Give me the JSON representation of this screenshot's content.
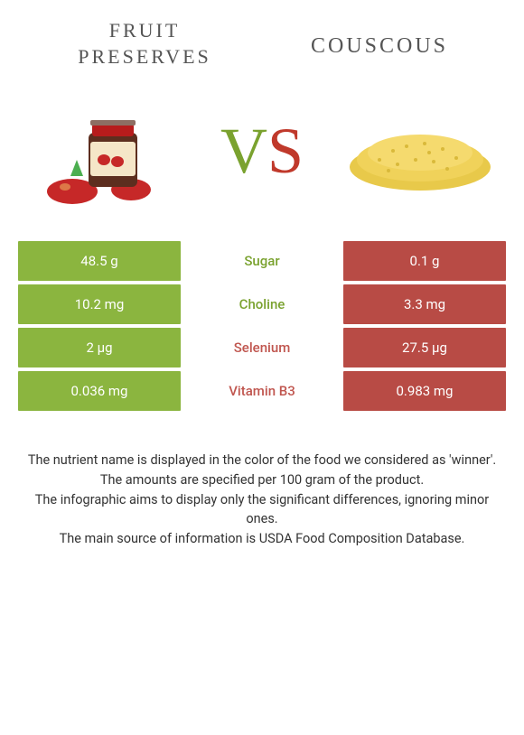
{
  "header": {
    "left_title": "FRUIT PRESERVES",
    "right_title": "COUSCOUS"
  },
  "vs_label": {
    "v": "V",
    "s": "S"
  },
  "colors": {
    "green": "#8bb53f",
    "red": "#b84b45",
    "text_green": "#7aa22f",
    "text_red": "#c0564f"
  },
  "rows": [
    {
      "left": "48.5 g",
      "mid": "Sugar",
      "right": "0.1 g",
      "winner": "left"
    },
    {
      "left": "10.2 mg",
      "mid": "Choline",
      "right": "3.3 mg",
      "winner": "left"
    },
    {
      "left": "2 µg",
      "mid": "Selenium",
      "right": "27.5 µg",
      "winner": "right"
    },
    {
      "left": "0.036 mg",
      "mid": "Vitamin B3",
      "right": "0.983 mg",
      "winner": "right"
    }
  ],
  "footer_lines": [
    "The nutrient name is displayed in the color of the food we considered as 'winner'.",
    "The amounts are specified per 100 gram of the product.",
    "The infographic aims to display only the significant differences, ignoring minor ones.",
    "The main source of information is USDA Food Composition Database."
  ],
  "images": {
    "left_alt": "fruit-preserves-jar-with-strawberries",
    "right_alt": "couscous-pile"
  }
}
